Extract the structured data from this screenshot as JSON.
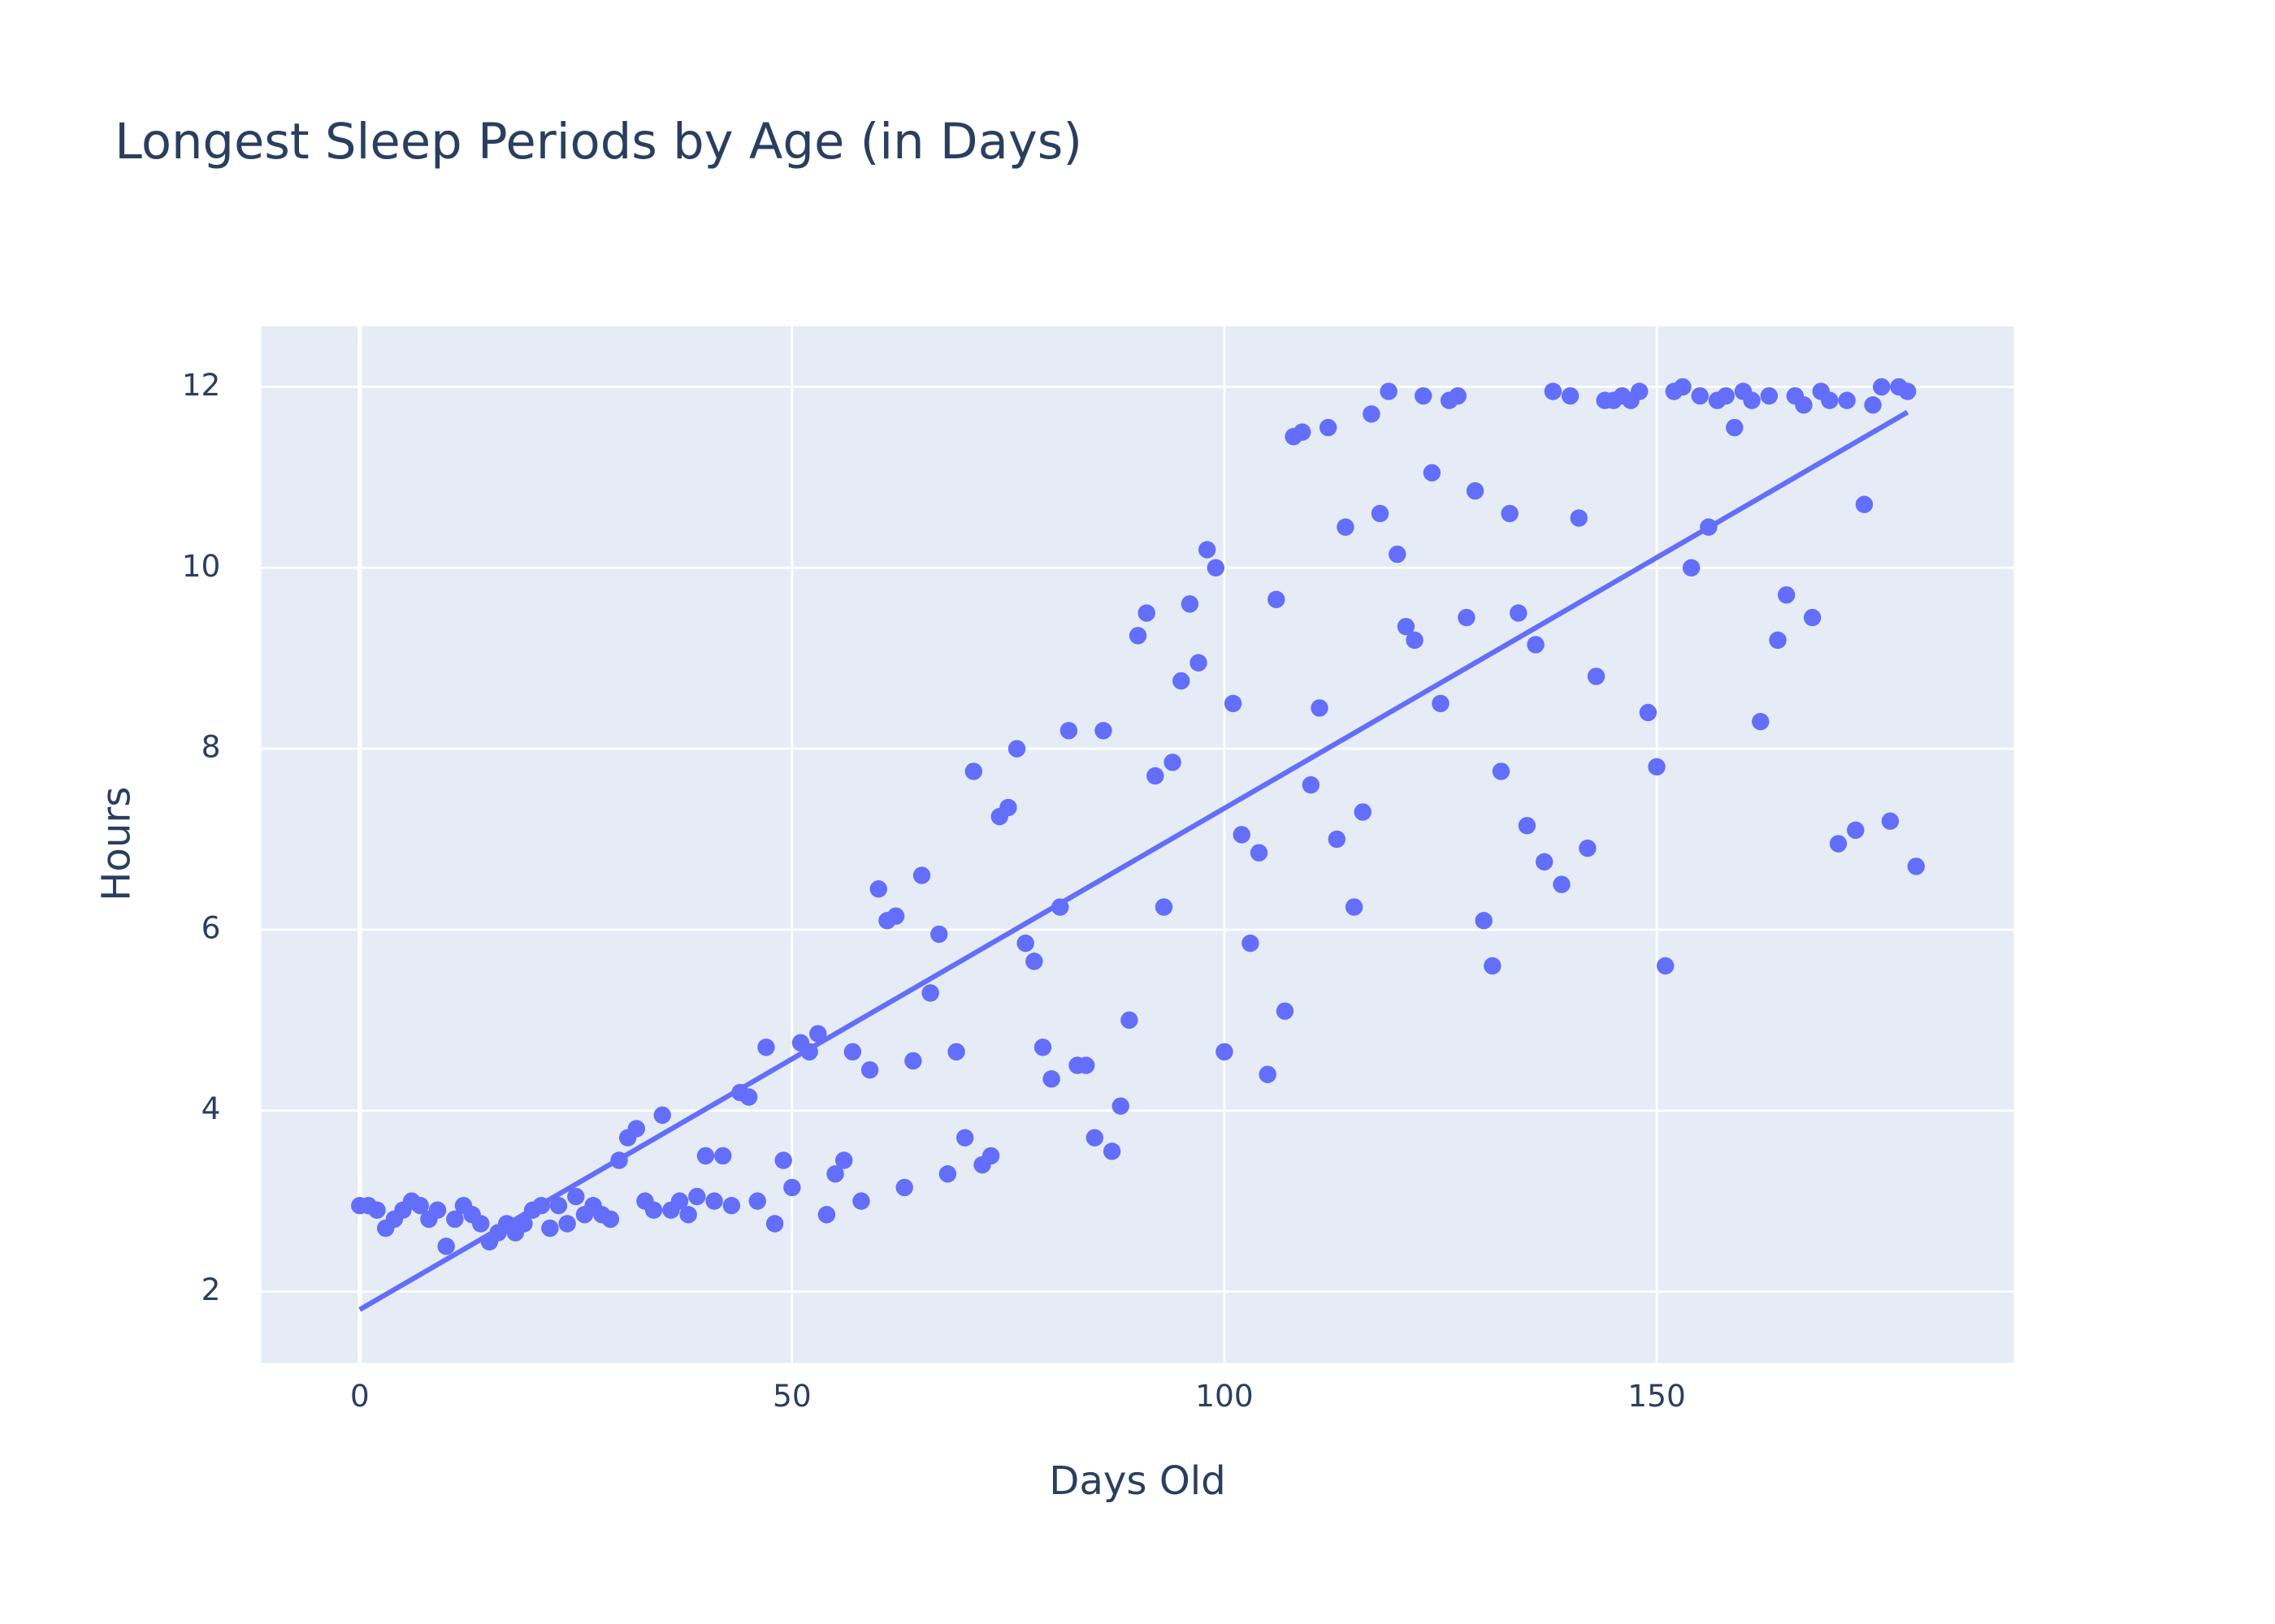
{
  "chart_data": {
    "type": "scatter",
    "title": "Longest Sleep Periods by Age (in Days)",
    "x_label": "Days Old",
    "y_label": "Hours",
    "xlim": [
      -11.4,
      191.3
    ],
    "ylim": [
      1.21,
      12.67
    ],
    "xticks": [
      0,
      50,
      100,
      150
    ],
    "yticks": [
      2,
      4,
      6,
      8,
      10,
      12
    ],
    "grid": true,
    "background": "#e5ecf6",
    "series": [
      {
        "color": "#636efa",
        "x": [
          0,
          1,
          2,
          3,
          4,
          5,
          6,
          7,
          8,
          9,
          10,
          11,
          12,
          13,
          14,
          15,
          16,
          17,
          18,
          19,
          20,
          21,
          22,
          23,
          24,
          25,
          26,
          27,
          28,
          29,
          30,
          31,
          32,
          33,
          34,
          35,
          36,
          37,
          38,
          39,
          40,
          41,
          42,
          43,
          44,
          45,
          46,
          47,
          48,
          49,
          50,
          51,
          52,
          53,
          54,
          55,
          56,
          57,
          58,
          59,
          60,
          61,
          62,
          63,
          64,
          65,
          66,
          67,
          68,
          69,
          70,
          71,
          72,
          73,
          74,
          75,
          76,
          77,
          78,
          79,
          80,
          81,
          82,
          83,
          84,
          85,
          86,
          87,
          88,
          89,
          90,
          91,
          92,
          93,
          94,
          95,
          96,
          97,
          98,
          99,
          100,
          101,
          102,
          103,
          104,
          105,
          106,
          107,
          108,
          109,
          110,
          111,
          112,
          113,
          114,
          115,
          116,
          117,
          118,
          119,
          120,
          121,
          122,
          123,
          124,
          125,
          126,
          127,
          128,
          129,
          130,
          131,
          132,
          133,
          134,
          135,
          136,
          137,
          138,
          139,
          140,
          141,
          142,
          143,
          144,
          145,
          146,
          147,
          148,
          149,
          150,
          151,
          152,
          153,
          154,
          155,
          156,
          157,
          158,
          159,
          160,
          161,
          162,
          163,
          164,
          165,
          166,
          167,
          168,
          169,
          170,
          171,
          172,
          173,
          174,
          175,
          176,
          177,
          178,
          179,
          180
        ],
        "values": [
          2.95,
          2.95,
          2.9,
          2.7,
          2.8,
          2.9,
          3.0,
          2.95,
          2.8,
          2.9,
          2.5,
          2.8,
          2.95,
          2.85,
          2.75,
          2.55,
          2.65,
          2.75,
          2.65,
          2.75,
          2.9,
          2.95,
          2.7,
          2.95,
          2.75,
          3.05,
          2.85,
          2.95,
          2.85,
          2.8,
          3.45,
          3.7,
          3.8,
          3.0,
          2.9,
          3.95,
          2.9,
          3.0,
          2.85,
          3.05,
          3.5,
          3.0,
          3.5,
          2.95,
          4.2,
          4.15,
          3.0,
          4.7,
          2.75,
          3.45,
          3.15,
          4.75,
          4.65,
          4.85,
          2.85,
          3.3,
          3.45,
          4.65,
          3.0,
          4.45,
          6.45,
          6.1,
          6.15,
          3.15,
          4.55,
          6.6,
          5.3,
          5.95,
          3.3,
          4.65,
          3.7,
          7.75,
          3.4,
          3.5,
          7.25,
          7.35,
          8.0,
          5.85,
          5.65,
          4.7,
          4.35,
          6.25,
          8.2,
          4.5,
          4.5,
          3.7,
          8.2,
          3.55,
          4.05,
          5.0,
          9.25,
          9.5,
          7.7,
          6.25,
          7.85,
          8.75,
          9.6,
          8.95,
          10.2,
          10.0,
          4.65,
          8.5,
          7.05,
          5.85,
          6.85,
          4.4,
          9.65,
          5.1,
          11.45,
          11.5,
          7.6,
          8.45,
          11.55,
          7.0,
          10.45,
          6.25,
          7.3,
          11.7,
          10.6,
          11.95,
          10.15,
          9.35,
          9.2,
          11.9,
          11.05,
          8.5,
          11.85,
          11.9,
          9.45,
          10.85,
          6.1,
          5.6,
          7.75,
          10.6,
          9.5,
          7.15,
          9.15,
          6.75,
          11.95,
          6.5,
          11.9,
          10.55,
          6.9,
          8.8,
          11.85,
          11.85,
          11.9,
          11.85,
          11.95,
          8.4,
          7.8,
          5.6,
          11.95,
          12.0,
          10.0,
          11.9,
          10.45,
          11.85,
          11.9,
          11.55,
          11.95,
          11.85,
          8.3,
          11.9,
          9.2,
          9.7,
          11.9,
          11.8,
          9.45,
          11.95,
          11.85,
          6.95,
          11.85,
          7.1,
          10.7,
          11.8,
          12.0,
          7.2,
          12.0,
          11.95,
          6.7
        ]
      }
    ],
    "trendline": {
      "color": "#636efa",
      "x": [
        0,
        179
      ],
      "values": [
        1.8,
        11.72
      ]
    }
  }
}
